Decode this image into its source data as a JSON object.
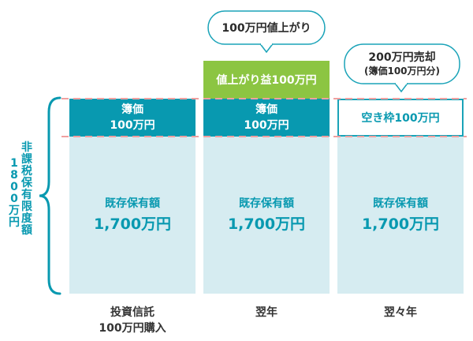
{
  "limit_label": [
    "非",
    "課",
    "税",
    "保",
    "有",
    "限",
    "度",
    "額"
  ],
  "limit_amount": [
    "1",
    "8",
    "0",
    "0",
    "万",
    "円"
  ],
  "columns": [
    {
      "cost_label": "簿価",
      "cost_value": "100万円",
      "existing_label": "既存保有額",
      "existing_value": "1,700万円",
      "bottom_label_1": "投資信託",
      "bottom_label_2": "100万円購入"
    },
    {
      "cost_label": "簿価",
      "cost_value": "100万円",
      "gain_label": "値上がり益100万円",
      "existing_label": "既存保有額",
      "existing_value": "1,700万円",
      "bottom_label_1": "翌年"
    },
    {
      "empty_label": "空き枠100万円",
      "existing_label": "既存保有額",
      "existing_value": "1,700万円",
      "bottom_label_1": "翌々年"
    }
  ],
  "bubbles": {
    "price_rise": "100万円値上がり",
    "sale_line1": "200万円売却",
    "sale_line2": "(簿価100万円分)"
  },
  "colors": {
    "teal": "#0899b0",
    "light_teal": "#d6ecf1",
    "green": "#8cc542",
    "dashed_red": "#f0a0a0"
  }
}
